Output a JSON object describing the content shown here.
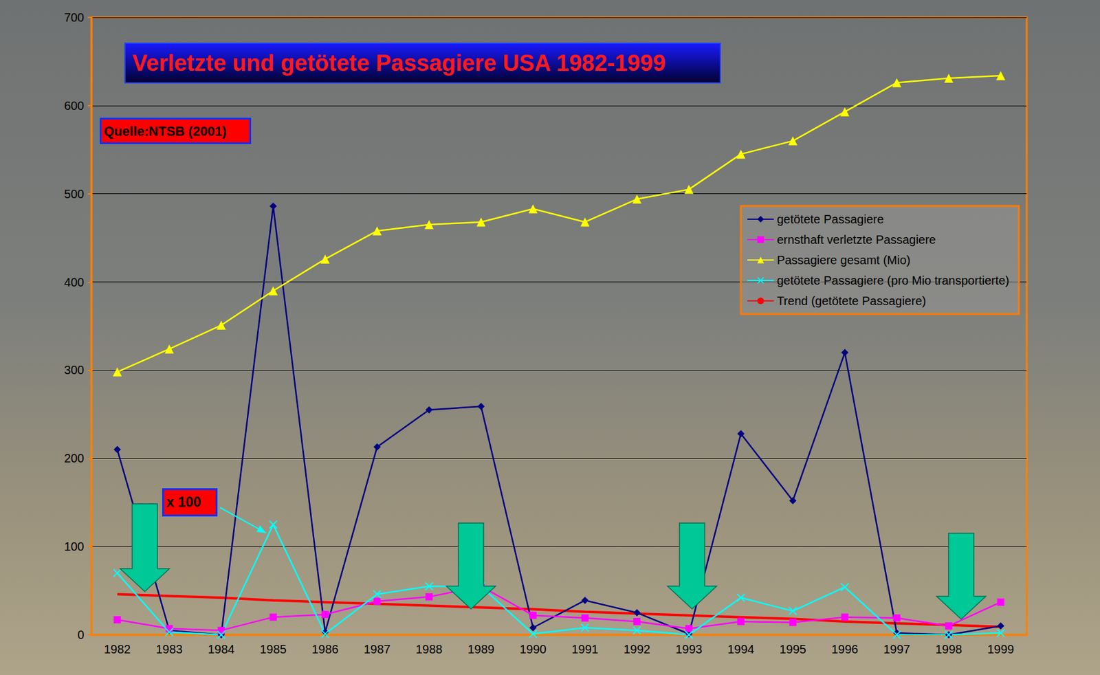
{
  "chart_data": {
    "type": "line",
    "title": "Verletzte und getötete Passagiere USA 1982-1999",
    "annotations": [
      "Quelle:NTSB (2001)",
      "x 100"
    ],
    "categories": [
      "1982",
      "1983",
      "1984",
      "1985",
      "1986",
      "1987",
      "1988",
      "1989",
      "1990",
      "1991",
      "1992",
      "1993",
      "1994",
      "1995",
      "1996",
      "1997",
      "1998",
      "1999"
    ],
    "series": [
      {
        "name": "getötete Passagiere",
        "color": "#000080",
        "marker": "diamond",
        "line_style": "solid",
        "values": [
          210,
          5,
          0,
          486,
          3,
          213,
          255,
          259,
          8,
          39,
          25,
          1,
          228,
          152,
          320,
          2,
          0,
          10
        ]
      },
      {
        "name": "ernsthaft verletzte Passagiere",
        "color": "#ff00ff",
        "marker": "square",
        "line_style": "solid",
        "values": [
          17,
          7,
          5,
          20,
          23,
          38,
          43,
          55,
          22,
          19,
          15,
          7,
          15,
          14,
          20,
          19,
          10,
          37
        ]
      },
      {
        "name": "Passagiere gesamt (Mio)",
        "color": "#ffff00",
        "marker": "triangle",
        "line_style": "solid",
        "values": [
          298,
          324,
          351,
          390,
          426,
          458,
          465,
          468,
          483,
          468,
          494,
          505,
          545,
          560,
          593,
          626,
          631,
          634
        ]
      },
      {
        "name": "getötete Passagiere (pro Mio transportierte)",
        "color": "#00ffff",
        "marker": "x",
        "line_style": "solid",
        "values": [
          70,
          3,
          0,
          125,
          1,
          46,
          55,
          55,
          1,
          8,
          5,
          0,
          42,
          27,
          54,
          0,
          0,
          2
        ]
      },
      {
        "name": "Trend (getötete Passagiere)",
        "color": "#ff0000",
        "marker": "none",
        "line_style": "solid",
        "values": [
          46,
          44,
          42,
          39,
          37,
          35,
          33,
          31,
          29,
          26,
          24,
          22,
          20,
          18,
          15,
          13,
          11,
          9
        ]
      }
    ],
    "ylim": [
      0,
      700
    ],
    "yticks": [
      0,
      100,
      200,
      300,
      400,
      500,
      600,
      700
    ],
    "grid": true,
    "legend": "right"
  }
}
